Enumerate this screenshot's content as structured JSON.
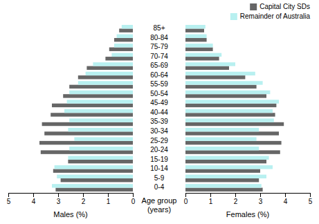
{
  "chart_data": [
    {
      "type": "bar",
      "orientation": "horizontal",
      "categories": [
        "85+",
        "80-84",
        "75-79",
        "70-74",
        "65-69",
        "60-64",
        "55-59",
        "50-54",
        "45-49",
        "40-44",
        "35-39",
        "30-34",
        "25-29",
        "20-24",
        "15-19",
        "10-14",
        "5-9",
        "0-4"
      ],
      "xlabel": "Males (%)",
      "ylabel": "Age group\n(years)",
      "xlim": [
        5,
        0
      ],
      "xticks": [
        0,
        1,
        2,
        3,
        4,
        5
      ],
      "grid": false,
      "series": [
        {
          "color": "#666666",
          "values": [
            0.55,
            0.75,
            0.95,
            1.1,
            1.85,
            2.2,
            2.55,
            2.8,
            3.25,
            3.3,
            3.65,
            3.55,
            3.75,
            3.7,
            2.6,
            3.2,
            2.9,
            3.1
          ]
        },
        {
          "color": "#b8f0f0",
          "values": [
            0.45,
            0.65,
            0.75,
            0.85,
            1.6,
            1.9,
            2.2,
            2.55,
            2.65,
            2.75,
            2.55,
            2.6,
            2.35,
            2.55,
            2.6,
            3.15,
            3.05,
            3.25
          ]
        }
      ]
    },
    {
      "type": "bar",
      "orientation": "horizontal",
      "categories": [
        "85+",
        "80-84",
        "75-79",
        "70-74",
        "65-69",
        "60-64",
        "55-59",
        "50-54",
        "45-49",
        "40-44",
        "35-39",
        "30-34",
        "25-29",
        "20-24",
        "15-19",
        "10-14",
        "5-9",
        "0-4"
      ],
      "xlabel": "Females (%)",
      "xlim": [
        0,
        5
      ],
      "xticks": [
        0,
        1,
        2,
        3,
        4,
        5
      ],
      "grid": false,
      "legend": "upper right",
      "series": [
        {
          "name": "Capital City SDs",
          "color": "#666666",
          "values": [
            0.75,
            0.85,
            1.1,
            1.35,
            1.75,
            2.4,
            2.85,
            3.25,
            3.65,
            3.6,
            3.95,
            3.75,
            3.85,
            3.8,
            3.25,
            3.0,
            2.95,
            3.1
          ]
        },
        {
          "name": "Remainder of Australia",
          "color": "#b8f0f0",
          "values": [
            0.8,
            0.85,
            1.1,
            1.45,
            2.0,
            2.8,
            3.1,
            3.4,
            3.75,
            3.5,
            3.55,
            2.95,
            2.85,
            2.95,
            3.35,
            3.5,
            3.25,
            3.05
          ]
        }
      ]
    }
  ]
}
